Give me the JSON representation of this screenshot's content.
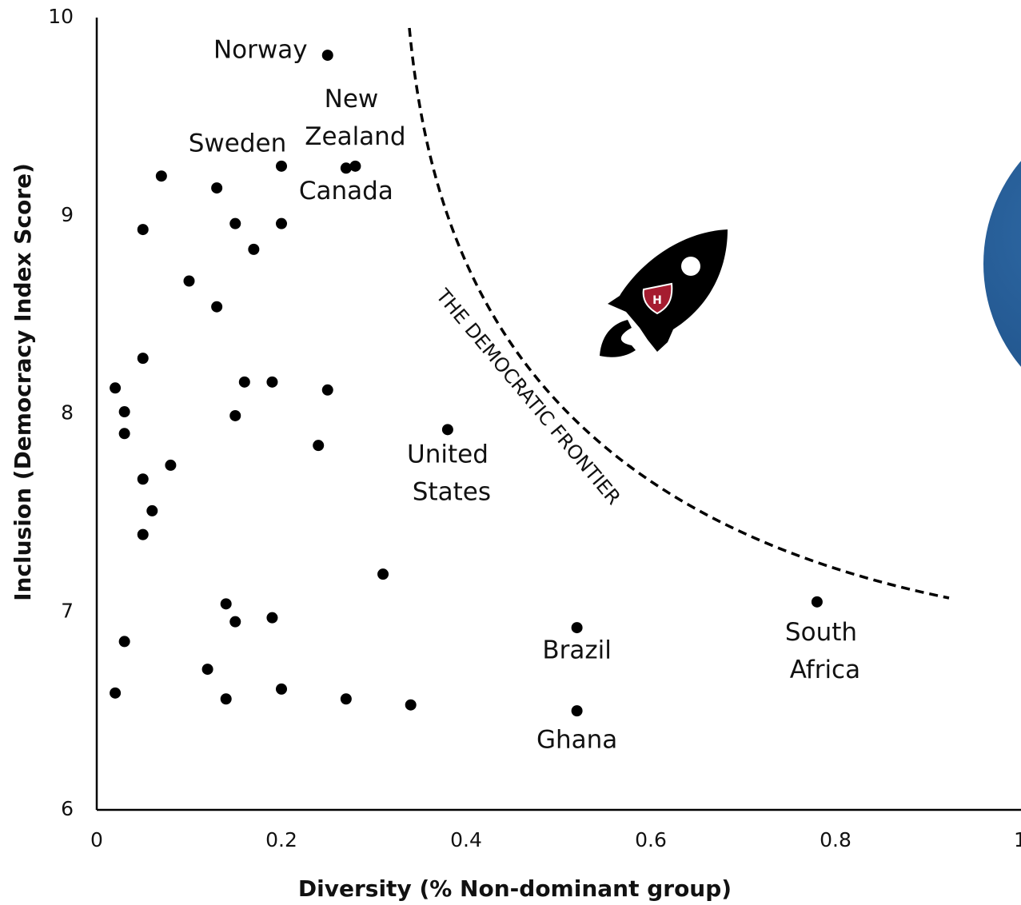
{
  "chart_data": {
    "type": "scatter",
    "x_label": "Diversity (% Non-dominant group)",
    "y_label": "Inclusion (Democracy Index Score)",
    "annotation": "THE DEMOCRATIC FRONTIER",
    "color": "#000000",
    "xlim": [
      0,
      1
    ],
    "ylim": [
      6,
      10
    ],
    "xticks": [
      0,
      0.2,
      0.4,
      0.6,
      0.8,
      1
    ],
    "yticks": [
      6,
      7,
      8,
      9,
      10
    ],
    "grid": false,
    "x": [
      0.25,
      0.28,
      0.27,
      0.2,
      0.07,
      0.13,
      0.05,
      0.15,
      0.2,
      0.17,
      0.1,
      0.13,
      0.05,
      0.02,
      0.16,
      0.19,
      0.25,
      0.03,
      0.15,
      0.03,
      0.24,
      0.38,
      0.08,
      0.05,
      0.06,
      0.05,
      0.31,
      0.14,
      0.15,
      0.19,
      0.78,
      0.52,
      0.03,
      0.12,
      0.02,
      0.14,
      0.2,
      0.27,
      0.34,
      0.52
    ],
    "y": [
      9.81,
      9.25,
      9.24,
      9.25,
      9.2,
      9.14,
      8.93,
      8.96,
      8.96,
      8.83,
      8.67,
      8.54,
      8.28,
      8.13,
      8.16,
      8.16,
      8.12,
      8.01,
      7.99,
      7.9,
      7.84,
      7.92,
      7.74,
      7.67,
      7.51,
      7.39,
      7.19,
      7.04,
      6.95,
      6.97,
      7.05,
      6.92,
      6.85,
      6.71,
      6.59,
      6.56,
      6.61,
      6.56,
      6.53,
      6.5
    ],
    "labels": [
      "Norway",
      "New Zealand",
      "Canada",
      "Sweden",
      null,
      null,
      null,
      null,
      null,
      null,
      null,
      null,
      null,
      null,
      null,
      null,
      null,
      null,
      null,
      null,
      null,
      "United States",
      null,
      null,
      null,
      null,
      null,
      null,
      null,
      null,
      "South Africa",
      "Brazil",
      null,
      null,
      null,
      null,
      null,
      null,
      null,
      "Ghana"
    ]
  }
}
